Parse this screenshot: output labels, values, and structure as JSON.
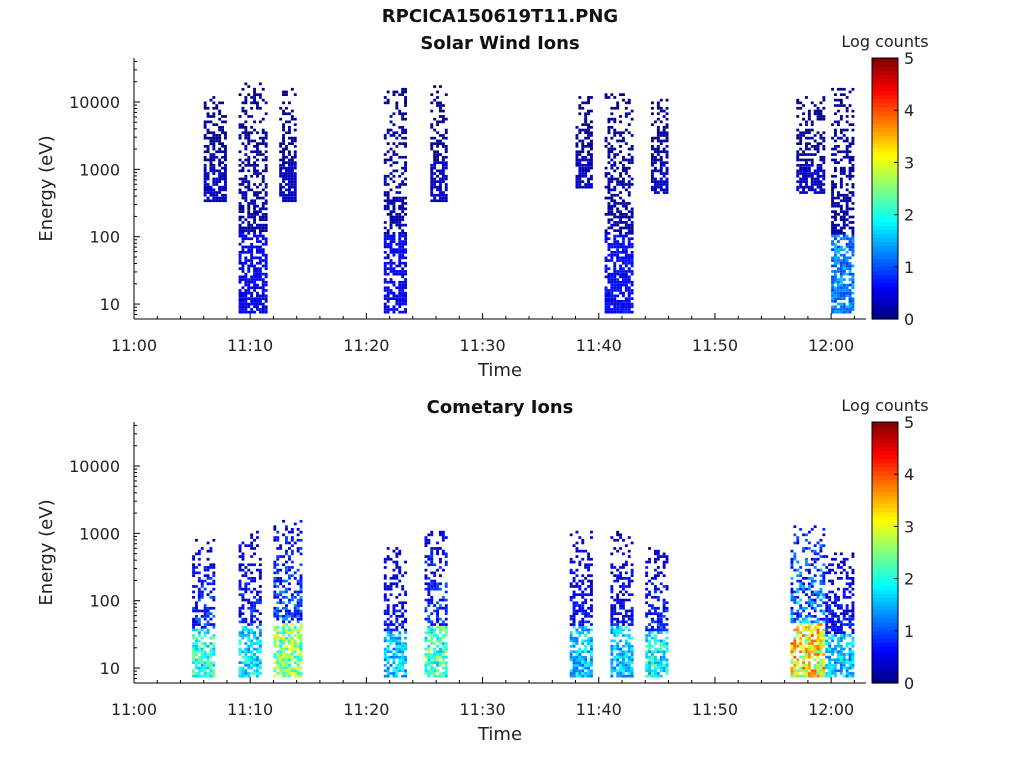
{
  "figure": {
    "title": "RPCICA150619T11.PNG"
  },
  "chart_data": [
    {
      "type": "heatmap",
      "title": "Solar Wind Ions",
      "xlabel": "Time",
      "ylabel": "Energy (eV)",
      "x_ticks": [
        "11:00",
        "11:10",
        "11:20",
        "11:30",
        "11:40",
        "11:50",
        "12:00"
      ],
      "xlim": [
        "11:00",
        "12:03"
      ],
      "y_scale": "log",
      "y_ticks": [
        "10",
        "100",
        "1000",
        "10000"
      ],
      "ylim": [
        6,
        45000
      ],
      "colorbar": {
        "label": "Log counts",
        "ticks": [
          "0",
          "1",
          "2",
          "3",
          "4",
          "5"
        ],
        "range": [
          0,
          5
        ],
        "colormap": "jet"
      },
      "bursts": [
        {
          "t_start": 9.0,
          "t_end": 11.5,
          "e_min": 7,
          "e_max": 20000,
          "peak_log_counts": 0.6,
          "low_energy_peak": 0.7
        },
        {
          "t_start": 6.0,
          "t_end": 8.0,
          "e_min": 300,
          "e_max": 12000,
          "peak_log_counts": 0.4,
          "low_energy_peak": 0.4
        },
        {
          "t_start": 12.5,
          "t_end": 14.0,
          "e_min": 300,
          "e_max": 15000,
          "peak_log_counts": 0.4,
          "low_energy_peak": 0.4
        },
        {
          "t_start": 21.5,
          "t_end": 23.5,
          "e_min": 7,
          "e_max": 16000,
          "peak_log_counts": 0.6,
          "low_energy_peak": 0.7
        },
        {
          "t_start": 25.5,
          "t_end": 27.0,
          "e_min": 300,
          "e_max": 17000,
          "peak_log_counts": 0.4,
          "low_energy_peak": 0.4
        },
        {
          "t_start": 38.0,
          "t_end": 39.5,
          "e_min": 500,
          "e_max": 12000,
          "peak_log_counts": 0.4,
          "low_energy_peak": 0.4
        },
        {
          "t_start": 40.5,
          "t_end": 43.0,
          "e_min": 7,
          "e_max": 14000,
          "peak_log_counts": 0.6,
          "low_energy_peak": 0.8
        },
        {
          "t_start": 44.5,
          "t_end": 46.0,
          "e_min": 400,
          "e_max": 12000,
          "peak_log_counts": 0.4,
          "low_energy_peak": 0.4
        },
        {
          "t_start": 57.0,
          "t_end": 59.5,
          "e_min": 400,
          "e_max": 12000,
          "peak_log_counts": 0.4,
          "low_energy_peak": 0.4
        },
        {
          "t_start": 60.0,
          "t_end": 62.0,
          "e_min": 7,
          "e_max": 16000,
          "peak_log_counts": 0.6,
          "low_energy_peak": 1.6
        }
      ]
    },
    {
      "type": "heatmap",
      "title": "Cometary Ions",
      "xlabel": "Time",
      "ylabel": "Energy (eV)",
      "x_ticks": [
        "11:00",
        "11:10",
        "11:20",
        "11:30",
        "11:40",
        "11:50",
        "12:00"
      ],
      "xlim": [
        "11:00",
        "12:03"
      ],
      "y_scale": "log",
      "y_ticks": [
        "10",
        "100",
        "1000",
        "10000"
      ],
      "ylim": [
        6,
        45000
      ],
      "colorbar": {
        "label": "Log counts",
        "ticks": [
          "0",
          "1",
          "2",
          "3",
          "4",
          "5"
        ],
        "range": [
          0,
          5
        ],
        "colormap": "jet"
      },
      "bursts": [
        {
          "t_start": 5.0,
          "t_end": 7.0,
          "e_min": 7,
          "e_max": 800,
          "peak_log_counts": 2.6,
          "low_energy_peak": 2.6
        },
        {
          "t_start": 9.0,
          "t_end": 11.0,
          "e_min": 7,
          "e_max": 1000,
          "peak_log_counts": 2.2,
          "low_energy_peak": 2.2
        },
        {
          "t_start": 12.0,
          "t_end": 14.5,
          "e_min": 7,
          "e_max": 1500,
          "peak_log_counts": 3.2,
          "low_energy_peak": 3.2
        },
        {
          "t_start": 21.5,
          "t_end": 23.5,
          "e_min": 7,
          "e_max": 600,
          "peak_log_counts": 2.0,
          "low_energy_peak": 2.0
        },
        {
          "t_start": 25.0,
          "t_end": 27.0,
          "e_min": 7,
          "e_max": 1000,
          "peak_log_counts": 2.8,
          "low_energy_peak": 2.8
        },
        {
          "t_start": 37.5,
          "t_end": 39.5,
          "e_min": 7,
          "e_max": 1000,
          "peak_log_counts": 2.0,
          "low_energy_peak": 2.0
        },
        {
          "t_start": 41.0,
          "t_end": 43.0,
          "e_min": 7,
          "e_max": 1000,
          "peak_log_counts": 2.0,
          "low_energy_peak": 2.0
        },
        {
          "t_start": 44.0,
          "t_end": 46.0,
          "e_min": 7,
          "e_max": 600,
          "peak_log_counts": 2.4,
          "low_energy_peak": 2.4
        },
        {
          "t_start": 56.5,
          "t_end": 59.5,
          "e_min": 7,
          "e_max": 1200,
          "peak_log_counts": 4.0,
          "low_energy_peak": 4.0
        },
        {
          "t_start": 59.5,
          "t_end": 62.0,
          "e_min": 7,
          "e_max": 500,
          "peak_log_counts": 2.0,
          "low_energy_peak": 2.0
        }
      ]
    }
  ]
}
